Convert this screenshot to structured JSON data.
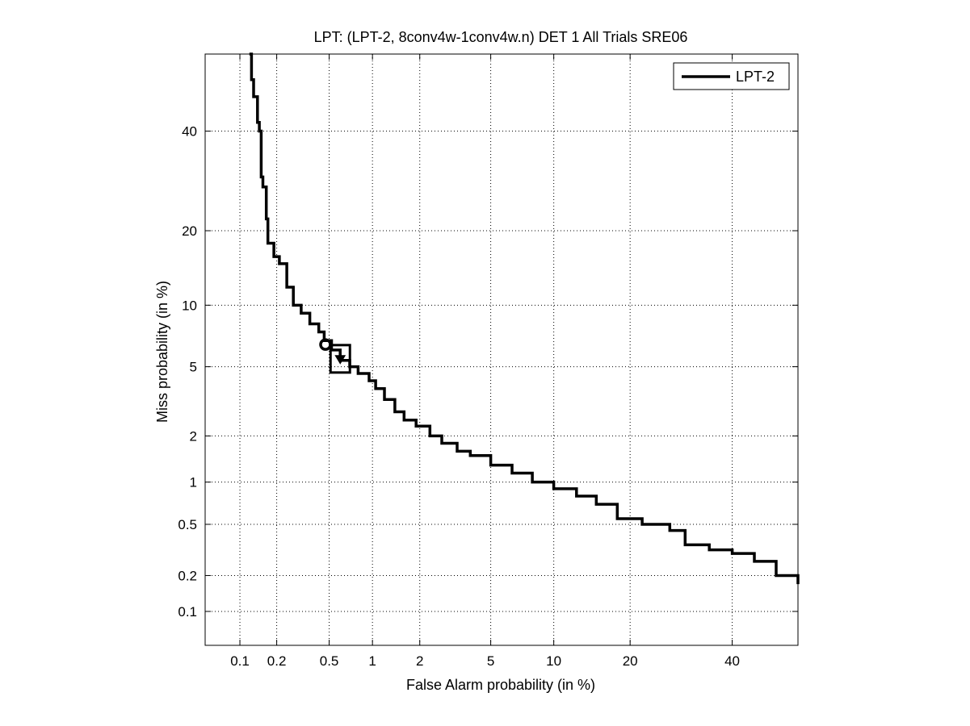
{
  "chart_data": {
    "type": "line",
    "scale": "probit (normal deviate) on both axes",
    "title": "LPT: (LPT-2, 8conv4w-1conv4w.n) DET 1 All Trials SRE06",
    "xlabel": "False Alarm probability (in %)",
    "ylabel": "Miss probability (in %)",
    "xlim": [
      0.05,
      55
    ],
    "ylim": [
      0.05,
      58
    ],
    "x_ticks": [
      0.1,
      0.2,
      0.5,
      1,
      2,
      5,
      10,
      20,
      40
    ],
    "x_tick_labels": [
      "0.1",
      "0.2",
      "0.5",
      "1",
      "2",
      "5",
      "10",
      "20",
      "40"
    ],
    "y_ticks": [
      0.1,
      0.2,
      0.5,
      1,
      2,
      5,
      10,
      20,
      40
    ],
    "y_tick_labels": [
      "0.1",
      "0.2",
      "0.5",
      "1",
      "2",
      "5",
      "10",
      "20",
      "40"
    ],
    "grid": true,
    "legend": {
      "position": "top-right",
      "entries": [
        "LPT-2"
      ]
    },
    "series": [
      {
        "name": "LPT-2",
        "color": "#000000",
        "points": [
          [
            0.12,
            58
          ],
          [
            0.125,
            52
          ],
          [
            0.13,
            48
          ],
          [
            0.14,
            42
          ],
          [
            0.145,
            40
          ],
          [
            0.15,
            38
          ],
          [
            0.15,
            30
          ],
          [
            0.155,
            28
          ],
          [
            0.165,
            22
          ],
          [
            0.17,
            18
          ],
          [
            0.19,
            16
          ],
          [
            0.21,
            15
          ],
          [
            0.24,
            12
          ],
          [
            0.27,
            10
          ],
          [
            0.31,
            9.2
          ],
          [
            0.36,
            8.2
          ],
          [
            0.42,
            7.5
          ],
          [
            0.46,
            6.8
          ],
          [
            0.52,
            6.1
          ],
          [
            0.6,
            5.4
          ],
          [
            0.7,
            5.0
          ],
          [
            0.8,
            4.6
          ],
          [
            0.95,
            4.2
          ],
          [
            1.05,
            3.8
          ],
          [
            1.2,
            3.3
          ],
          [
            1.4,
            2.8
          ],
          [
            1.6,
            2.5
          ],
          [
            1.9,
            2.3
          ],
          [
            2.3,
            2.0
          ],
          [
            2.7,
            1.8
          ],
          [
            3.3,
            1.6
          ],
          [
            3.9,
            1.5
          ],
          [
            5.0,
            1.3
          ],
          [
            6.4,
            1.15
          ],
          [
            8.0,
            1.0
          ],
          [
            10.0,
            0.9
          ],
          [
            12.5,
            0.8
          ],
          [
            15.0,
            0.7
          ],
          [
            18.0,
            0.55
          ],
          [
            22.0,
            0.5
          ],
          [
            27.0,
            0.45
          ],
          [
            30.0,
            0.35
          ],
          [
            35.0,
            0.32
          ],
          [
            40.0,
            0.3
          ],
          [
            45.0,
            0.26
          ],
          [
            50.0,
            0.2
          ],
          [
            55.0,
            0.17
          ]
        ]
      }
    ],
    "markers": [
      {
        "name": "min-dcf-circle",
        "shape": "circle",
        "x": 0.47,
        "y": 6.5
      },
      {
        "name": "actual-dcf-box",
        "shape": "square",
        "x": 0.6,
        "y": 5.5
      },
      {
        "name": "actual-dcf-triangle",
        "shape": "triangle-down",
        "x": 0.6,
        "y": 5.5
      }
    ]
  }
}
